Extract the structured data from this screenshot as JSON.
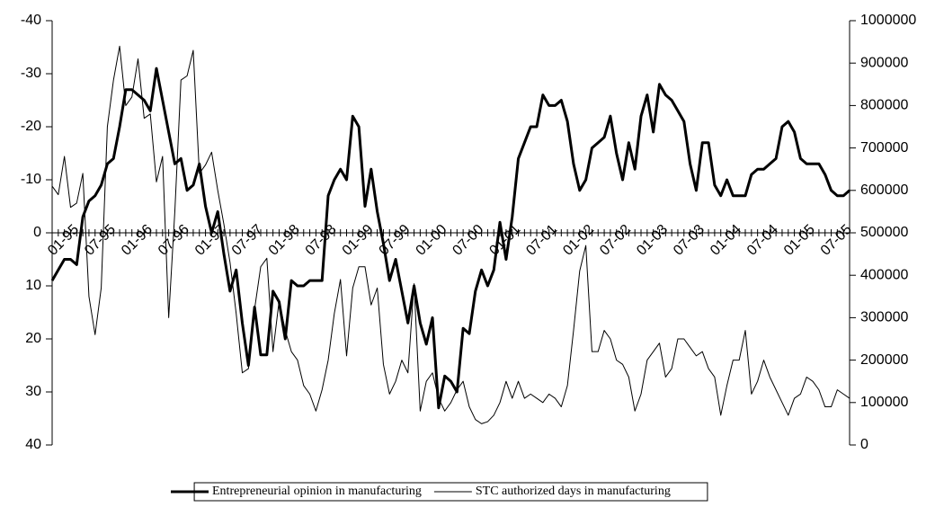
{
  "chart_data": {
    "type": "line",
    "categories": [
      null,
      null,
      null,
      null,
      "01-95",
      null,
      null,
      null,
      null,
      null,
      "07-95",
      null,
      null,
      null,
      null,
      null,
      "01-96",
      null,
      null,
      null,
      null,
      null,
      "07-96",
      null,
      null,
      null,
      null,
      null,
      "01-97",
      null,
      null,
      null,
      null,
      null,
      "07-97",
      null,
      null,
      null,
      null,
      null,
      "01-98",
      null,
      null,
      null,
      null,
      null,
      "07-98",
      null,
      null,
      null,
      null,
      null,
      "01-99",
      null,
      null,
      null,
      null,
      null,
      "07-99",
      null,
      null,
      null,
      null,
      null,
      "01-00",
      null,
      null,
      null,
      null,
      null,
      "07-00",
      null,
      null,
      null,
      null,
      null,
      "01-01",
      null,
      null,
      null,
      null,
      null,
      "07-01",
      null,
      null,
      null,
      null,
      null,
      "01-02",
      null,
      null,
      null,
      null,
      null,
      "07-02",
      null,
      null,
      null,
      null,
      null,
      "01-03",
      null,
      null,
      null,
      null,
      null,
      "07-03",
      null,
      null,
      null,
      null,
      null,
      "01-04",
      null,
      null,
      null,
      null,
      null,
      "07-04",
      null,
      null,
      null,
      null,
      null,
      "01-05",
      null,
      null,
      null,
      null,
      null,
      "07-05"
    ],
    "series": [
      {
        "name": "Entrepreneurial opinion in manufacturing",
        "color": "#000000",
        "width": 3,
        "values": [
          9,
          7,
          5,
          5,
          6,
          -3,
          -6,
          -7,
          -9,
          -13,
          -14,
          -20,
          -27,
          -27,
          -26,
          -25,
          -23,
          -31,
          -25,
          -19,
          -13,
          -14,
          -8,
          -9,
          -13,
          -5,
          0,
          -4,
          4,
          11,
          7,
          17,
          25,
          14,
          23,
          23,
          11,
          13,
          20,
          9,
          10,
          10,
          9,
          9,
          9,
          -7,
          -10,
          -12,
          -10,
          -22,
          -20,
          -5,
          -12,
          -4,
          2,
          9,
          5,
          11,
          17,
          10,
          17,
          21,
          16,
          33,
          27,
          28,
          30,
          18,
          19,
          11,
          7,
          10,
          7,
          -2,
          5,
          -3,
          -14,
          -17,
          -20,
          -20,
          -26,
          -24,
          -24,
          -25,
          -21,
          -13,
          -8,
          -10,
          -16,
          -17,
          -18,
          -22,
          -15,
          -10,
          -17,
          -12,
          -22,
          -26,
          -19,
          -28,
          -26,
          -25,
          -23,
          -21,
          -13,
          -8,
          -17,
          -17,
          -9,
          -7,
          -10,
          -7,
          -7,
          -7,
          -11,
          -12,
          -12,
          -13,
          -14,
          -20,
          -21,
          -19,
          -14,
          -13,
          -13,
          -13,
          -11,
          -8,
          -7,
          -7,
          -8
        ]
      },
      {
        "name": "STC authorized days in manufacturing",
        "color": "#000000",
        "width": 1,
        "axis": "y2",
        "values": [
          610000,
          590000,
          680000,
          560000,
          570000,
          640000,
          350000,
          260000,
          370000,
          750000,
          860000,
          940000,
          800000,
          820000,
          910000,
          770000,
          780000,
          620000,
          680000,
          300000,
          550000,
          860000,
          870000,
          930000,
          640000,
          660000,
          690000,
          600000,
          520000,
          430000,
          310000,
          170000,
          180000,
          320000,
          420000,
          440000,
          220000,
          340000,
          270000,
          220000,
          200000,
          140000,
          120000,
          80000,
          130000,
          200000,
          310000,
          390000,
          210000,
          370000,
          420000,
          420000,
          330000,
          370000,
          190000,
          120000,
          150000,
          200000,
          170000,
          380000,
          80000,
          150000,
          170000,
          110000,
          80000,
          100000,
          130000,
          150000,
          90000,
          60000,
          50000,
          55000,
          70000,
          100000,
          150000,
          110000,
          150000,
          110000,
          120000,
          110000,
          100000,
          120000,
          110000,
          90000,
          140000,
          270000,
          410000,
          470000,
          220000,
          220000,
          270000,
          250000,
          200000,
          190000,
          160000,
          80000,
          120000,
          200000,
          220000,
          240000,
          160000,
          180000,
          250000,
          250000,
          230000,
          210000,
          220000,
          180000,
          160000,
          70000,
          140000,
          200000,
          200000,
          270000,
          120000,
          150000,
          200000,
          160000,
          130000,
          100000,
          70000,
          110000,
          120000,
          160000,
          150000,
          130000,
          90000,
          90000,
          130000,
          120000,
          110000
        ]
      }
    ],
    "ylim": [
      -40,
      40
    ],
    "yticks": [
      -40,
      -30,
      -20,
      -10,
      0,
      10,
      20,
      30,
      40
    ],
    "y_inverted": true,
    "y2lim": [
      0,
      1000000
    ],
    "y2ticks": [
      0,
      100000,
      200000,
      300000,
      400000,
      500000,
      600000,
      700000,
      800000,
      900000,
      1000000
    ],
    "grid": false,
    "legend": "bottom"
  }
}
